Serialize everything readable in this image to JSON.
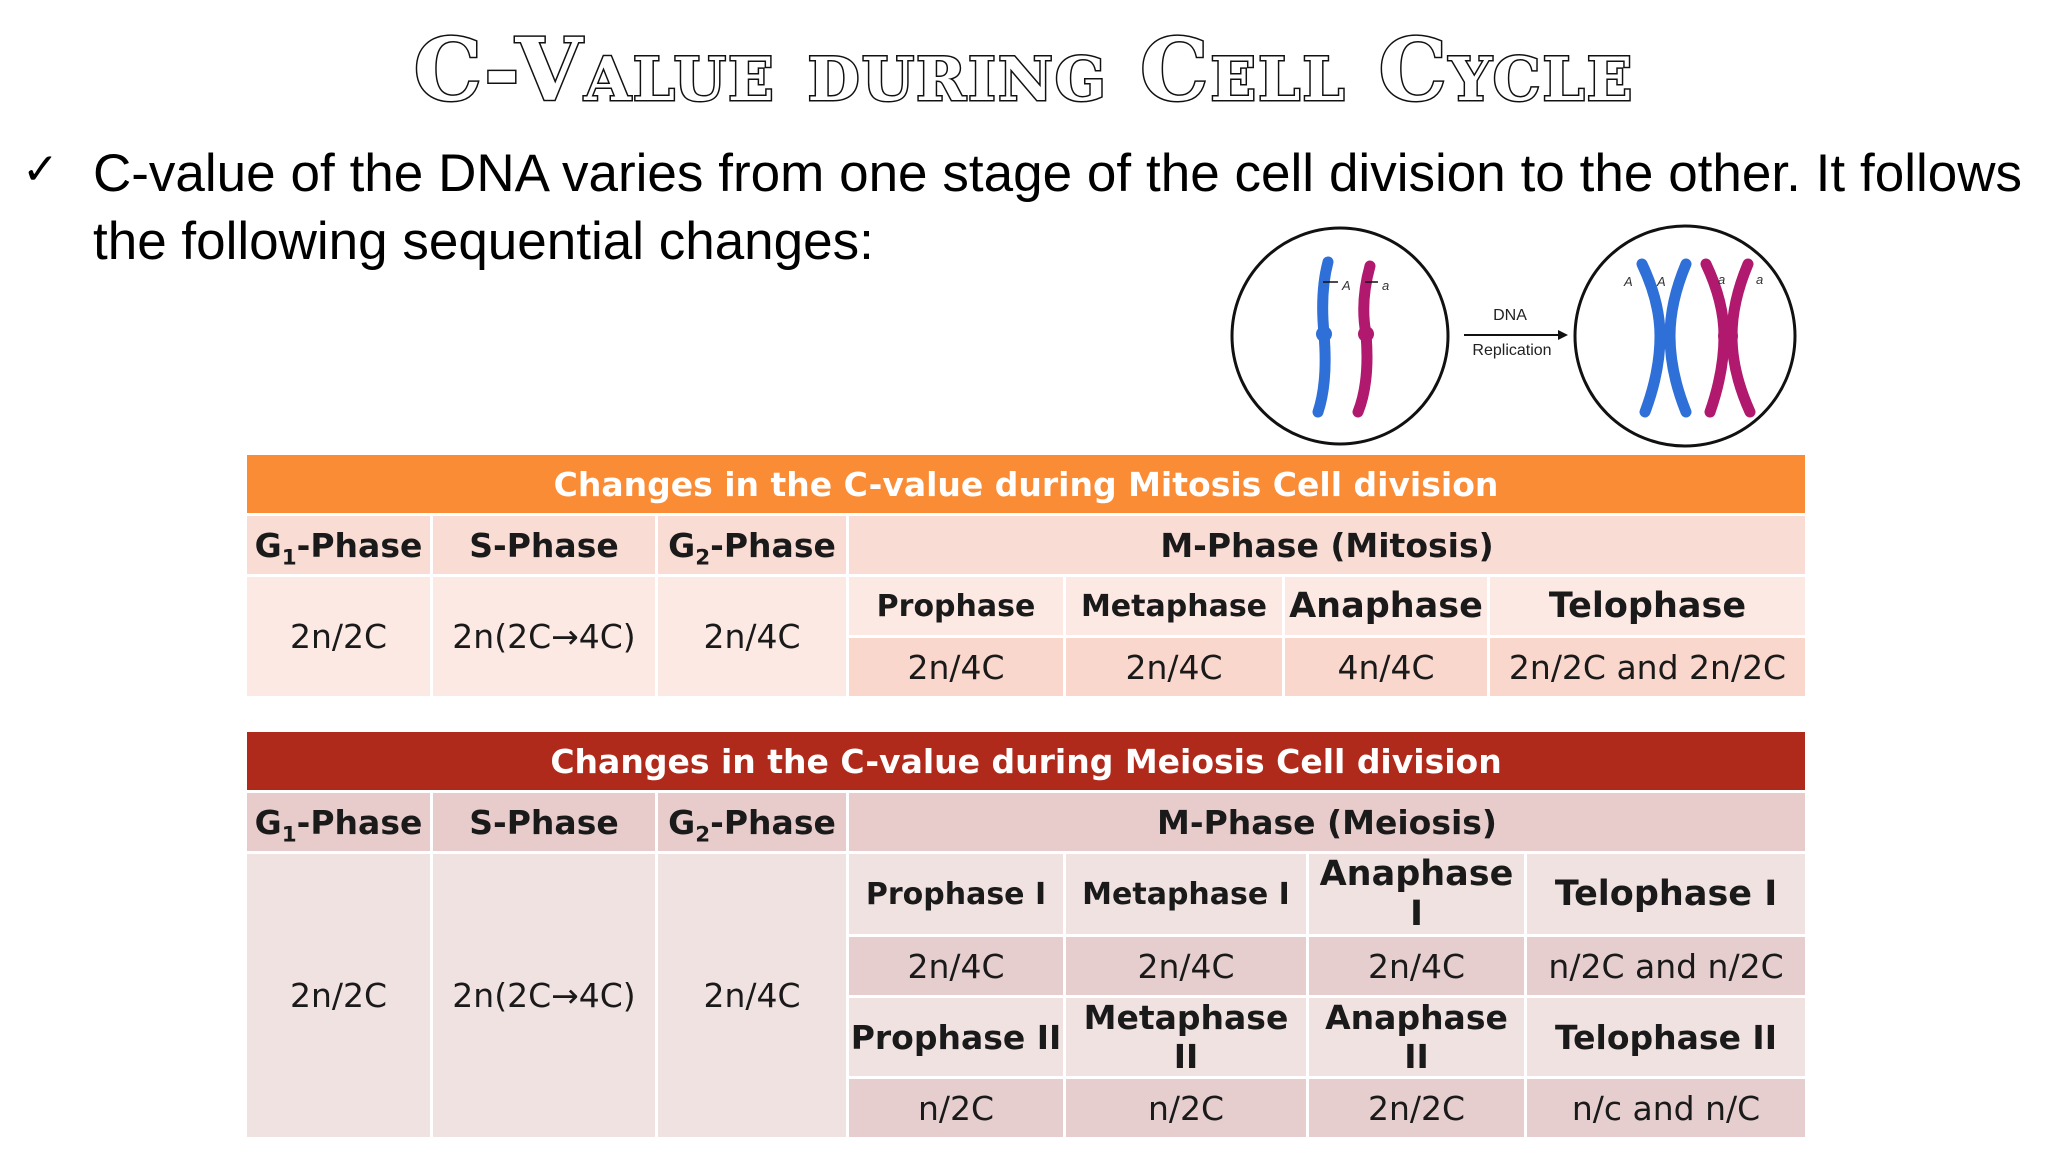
{
  "title": "C-Value during Cell Cycle",
  "bullet": {
    "mark": "✓",
    "text": "C-value of the DNA varies from one stage of the cell division to the other. It follows the following sequential changes:"
  },
  "diagram": {
    "arrow_label_1": "DNA",
    "arrow_label_2": "Replication",
    "allele_upper": "A",
    "allele_lower": "a",
    "colors": {
      "blue": "#2f6fd8",
      "magenta": "#b0196e"
    }
  },
  "mitosis": {
    "title": "Changes in the C-value during Mitosis Cell division",
    "header_color": "#fb8c36",
    "g1_label": "G",
    "g1_sub": "1",
    "g1_suffix": "-Phase",
    "s_label": "S-Phase",
    "g2_label": "G",
    "g2_sub": "2",
    "g2_suffix": "-Phase",
    "m_label": "M-Phase (Mitosis)",
    "g1_value": "2n/2C",
    "s_value": "2n(2C→4C)",
    "g2_value": "2n/4C",
    "stages": [
      {
        "name": "Prophase",
        "value": "2n/4C"
      },
      {
        "name": "Metaphase",
        "value": "2n/4C"
      },
      {
        "name": "Anaphase",
        "value": "4n/4C"
      },
      {
        "name": "Telophase",
        "value": "2n/2C and 2n/2C"
      }
    ]
  },
  "meiosis": {
    "title": "Changes in the C-value during Meiosis Cell division",
    "header_color": "#b02a1c",
    "g1_label": "G",
    "g1_sub": "1",
    "g1_suffix": "-Phase",
    "s_label": "S-Phase",
    "g2_label": "G",
    "g2_sub": "2",
    "g2_suffix": "-Phase",
    "m_label": "M-Phase (Meiosis)",
    "g1_value": "2n/2C",
    "s_value": "2n(2C→4C)",
    "g2_value": "2n/4C",
    "stages_1": [
      {
        "name": "Prophase I",
        "value": "2n/4C"
      },
      {
        "name": "Metaphase I",
        "value": "2n/4C"
      },
      {
        "name": "Anaphase I",
        "value": "2n/4C"
      },
      {
        "name": "Telophase I",
        "value": "n/2C and n/2C"
      }
    ],
    "stages_2": [
      {
        "name": "Prophase II",
        "value": "n/2C"
      },
      {
        "name": "Metaphase II",
        "value": "n/2C"
      },
      {
        "name": "Anaphase II",
        "value": "2n/2C"
      },
      {
        "name": "Telophase II",
        "value": "n/c and n/C"
      }
    ]
  }
}
